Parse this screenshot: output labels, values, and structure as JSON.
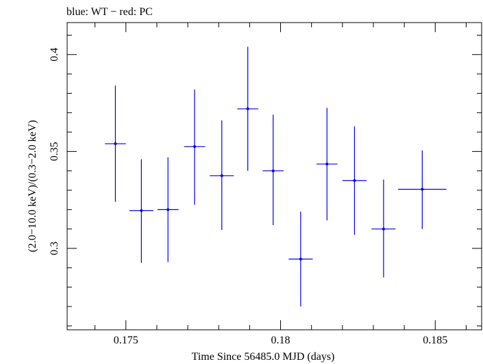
{
  "chart_data": {
    "type": "scatter",
    "title": "blue: WT − red: PC",
    "xlabel": "Time Since 56485.0 MJD (days)",
    "ylabel": "(2.0−10.0 keV)/(0.3−2.0 keV)",
    "xlim": [
      0.1731,
      0.1865
    ],
    "ylim": [
      0.258,
      0.4165
    ],
    "xticks": [
      {
        "value": 0.175,
        "label": "0.175"
      },
      {
        "value": 0.18,
        "label": "0.18"
      },
      {
        "value": 0.185,
        "label": "0.185"
      }
    ],
    "yticks": [
      {
        "value": 0.3,
        "label": "0.3"
      },
      {
        "value": 0.35,
        "label": "0.35"
      },
      {
        "value": 0.4,
        "label": "0.4"
      }
    ],
    "grid": false,
    "legend": "none",
    "series": [
      {
        "color": "#0000e6",
        "points": [
          {
            "x": 0.17466,
            "y": 0.354,
            "xerr": 0.00034,
            "yerr_low": 0.03,
            "yerr_high": 0.03
          },
          {
            "x": 0.1755,
            "y": 0.3195,
            "xerr": 0.00039,
            "yerr_low": 0.027,
            "yerr_high": 0.0265
          },
          {
            "x": 0.17636,
            "y": 0.32,
            "xerr": 0.00034,
            "yerr_low": 0.027,
            "yerr_high": 0.027
          },
          {
            "x": 0.17722,
            "y": 0.3525,
            "xerr": 0.00034,
            "yerr_low": 0.03,
            "yerr_high": 0.0295
          },
          {
            "x": 0.1781,
            "y": 0.3375,
            "xerr": 0.00039,
            "yerr_low": 0.028,
            "yerr_high": 0.0285
          },
          {
            "x": 0.17894,
            "y": 0.372,
            "xerr": 0.00034,
            "yerr_low": 0.032,
            "yerr_high": 0.032
          },
          {
            "x": 0.17976,
            "y": 0.34,
            "xerr": 0.00034,
            "yerr_low": 0.028,
            "yerr_high": 0.029
          },
          {
            "x": 0.18065,
            "y": 0.2945,
            "xerr": 0.00039,
            "yerr_low": 0.0245,
            "yerr_high": 0.0245
          },
          {
            "x": 0.1815,
            "y": 0.3435,
            "xerr": 0.00034,
            "yerr_low": 0.029,
            "yerr_high": 0.029
          },
          {
            "x": 0.18239,
            "y": 0.335,
            "xerr": 0.00039,
            "yerr_low": 0.028,
            "yerr_high": 0.028
          },
          {
            "x": 0.18333,
            "y": 0.31,
            "xerr": 0.00039,
            "yerr_low": 0.025,
            "yerr_high": 0.0255
          },
          {
            "x": 0.18458,
            "y": 0.3305,
            "xerr": 0.00078,
            "yerr_low": 0.0205,
            "yerr_high": 0.02
          }
        ]
      }
    ]
  }
}
